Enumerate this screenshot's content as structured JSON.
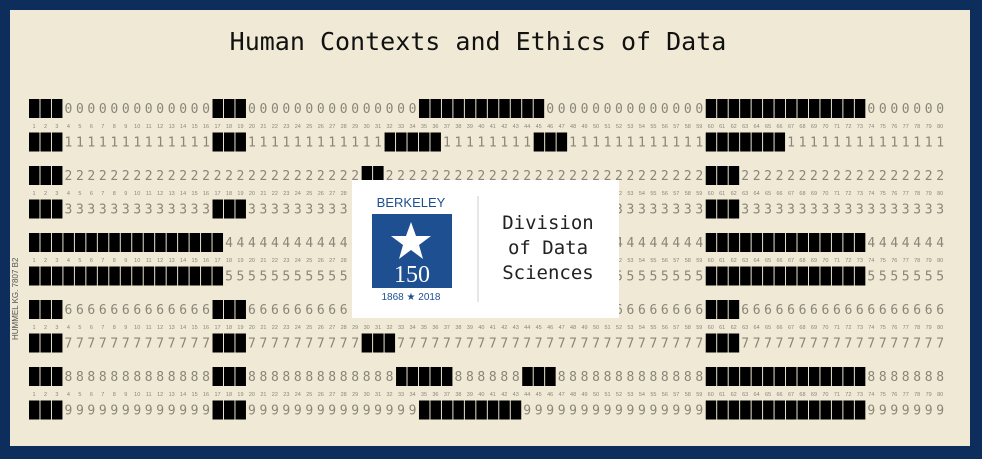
{
  "card": {
    "title": "Human Contexts and Ethics of Data",
    "digits": [
      "0",
      "1",
      "2",
      "3",
      "4",
      "5",
      "6",
      "7",
      "8",
      "9"
    ],
    "column_numbers": [
      1,
      2,
      3,
      4,
      5,
      6,
      7,
      8,
      9,
      10,
      11,
      12,
      13,
      14,
      15,
      16,
      17,
      18,
      19,
      20,
      21,
      22,
      23,
      24,
      25,
      26,
      27,
      28,
      29,
      30,
      31,
      32,
      33,
      34,
      35,
      36,
      37,
      38,
      39,
      40,
      41,
      42,
      43,
      44,
      45,
      46,
      47,
      48,
      49,
      50,
      51,
      52,
      53,
      54,
      55,
      56,
      57,
      58,
      59,
      60,
      61,
      62,
      63,
      64,
      65,
      66,
      67,
      68,
      69,
      70,
      71,
      72,
      73,
      74,
      75,
      76,
      77,
      78,
      79,
      80
    ],
    "side_print": "HUMMEL KG. 7807 B2"
  },
  "logo": {
    "wordmark": "BERKELEY",
    "number": "150",
    "years": "1868 ★ 2018",
    "division_lines": [
      "Division",
      "of Data",
      "Sciences"
    ]
  }
}
